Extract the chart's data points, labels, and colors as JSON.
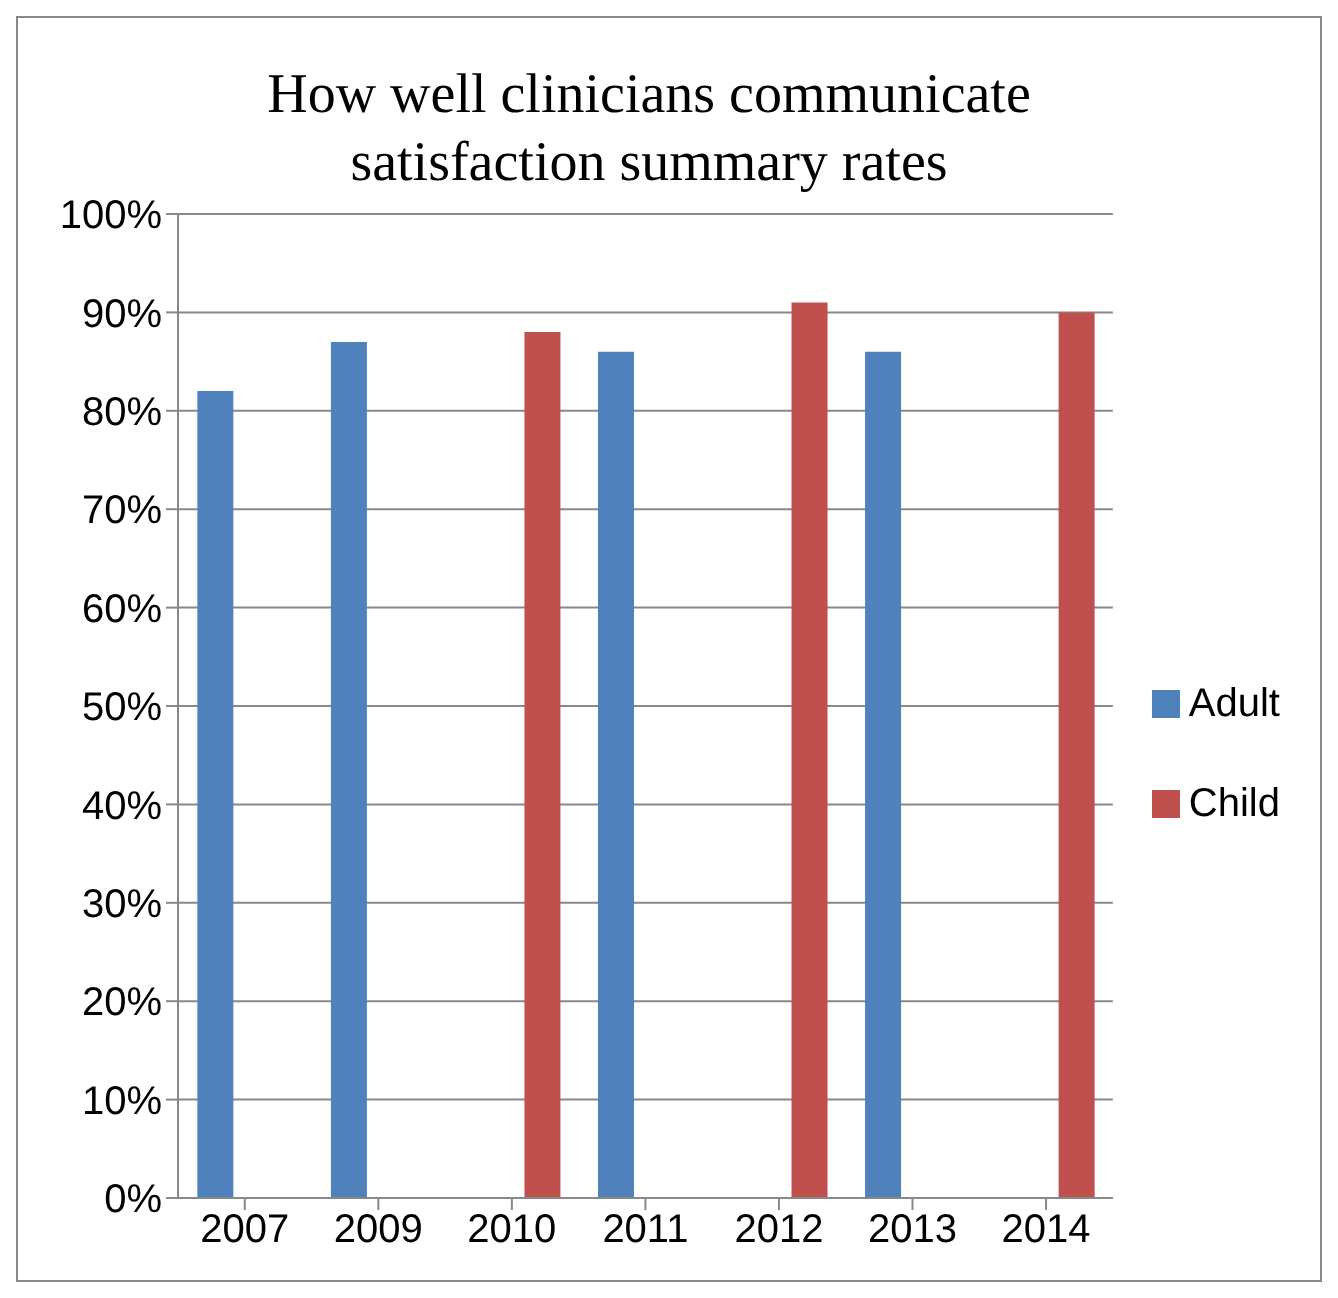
{
  "chart_data": {
    "type": "bar",
    "title": "How well clinicians communicate satisfaction summary rates",
    "categories": [
      "2007",
      "2009",
      "2010",
      "2011",
      "2012",
      "2013",
      "2014"
    ],
    "series": [
      {
        "name": "Adult",
        "color": "#4f81bd",
        "values": [
          82,
          87,
          null,
          86,
          null,
          86,
          null
        ]
      },
      {
        "name": "Child",
        "color": "#c0504d",
        "values": [
          null,
          null,
          88,
          null,
          91,
          null,
          90
        ]
      }
    ],
    "ylim": [
      0,
      100
    ],
    "yticks": [
      {
        "value": 0,
        "label": "0%"
      },
      {
        "value": 10,
        "label": "10%"
      },
      {
        "value": 20,
        "label": "20%"
      },
      {
        "value": 30,
        "label": "30%"
      },
      {
        "value": 40,
        "label": "40%"
      },
      {
        "value": 50,
        "label": "50%"
      },
      {
        "value": 60,
        "label": "60%"
      },
      {
        "value": 70,
        "label": "70%"
      },
      {
        "value": 80,
        "label": "80%"
      },
      {
        "value": 90,
        "label": "90%"
      },
      {
        "value": 100,
        "label": "100%"
      }
    ],
    "grid": "y",
    "legend": "right"
  }
}
